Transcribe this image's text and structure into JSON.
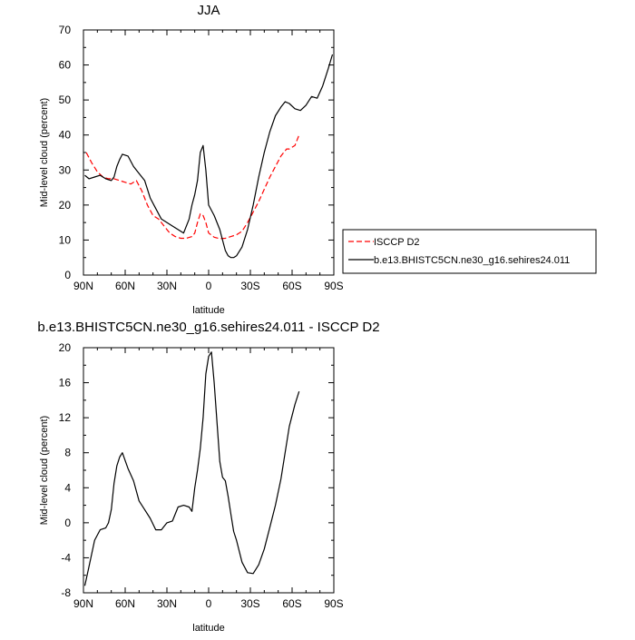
{
  "chart_data": [
    {
      "type": "line",
      "title": "JJA",
      "xlabel": "latitude",
      "ylabel": "Mid-level cloud (percent)",
      "xlim": [
        90,
        -90
      ],
      "ylim": [
        0,
        70
      ],
      "xticks": [
        90,
        60,
        30,
        0,
        -30,
        -60,
        -90
      ],
      "xtick_labels": [
        "90N",
        "60N",
        "30N",
        "0",
        "30S",
        "60S",
        "90S"
      ],
      "yticks": [
        0,
        10,
        20,
        30,
        40,
        50,
        60,
        70
      ],
      "ytick_labels": [
        "0",
        "10",
        "20",
        "30",
        "40",
        "50",
        "60",
        "70"
      ],
      "grid": false,
      "legend_position": "right",
      "series": [
        {
          "name": "ISCCP D2",
          "color": "#ff0000",
          "dash": "dashed",
          "x": [
            88,
            84,
            80,
            76,
            72,
            68,
            64,
            60,
            56,
            52,
            48,
            44,
            40,
            36,
            32,
            28,
            24,
            20,
            16,
            12,
            10,
            8,
            6,
            4,
            2,
            0,
            -4,
            -8,
            -12,
            -16,
            -20,
            -24,
            -28,
            -32,
            -36,
            -40,
            -44,
            -48,
            -52,
            -56,
            -58,
            -62,
            -65
          ],
          "y": [
            35,
            32,
            29.5,
            28,
            27.5,
            27.5,
            27,
            26.5,
            26,
            27,
            24,
            20,
            17,
            16,
            14,
            12,
            11,
            10.5,
            10.5,
            11,
            12,
            15,
            17.5,
            17,
            15,
            12,
            10.8,
            10.4,
            10.5,
            11,
            11.5,
            12.5,
            15,
            18,
            21,
            24.5,
            28,
            31,
            34,
            36,
            36,
            37,
            40
          ]
        },
        {
          "name": "b.e13.BHISTC5CN.ne30_g16.sehires24.011",
          "color": "#000000",
          "dash": "solid",
          "x": [
            89,
            86,
            82,
            78,
            74,
            70,
            68,
            66,
            64,
            62,
            58,
            54,
            50,
            46,
            42,
            38,
            34,
            30,
            26,
            22,
            18,
            14,
            12,
            10,
            8,
            6,
            4,
            2,
            0,
            -4,
            -8,
            -10,
            -12,
            -14,
            -16,
            -18,
            -20,
            -24,
            -28,
            -32,
            -36,
            -40,
            -44,
            -48,
            -52,
            -55,
            -58,
            -62,
            -66,
            -70,
            -74,
            -78,
            -82,
            -86,
            -89
          ],
          "y": [
            28.5,
            27.5,
            28,
            28.5,
            27.5,
            27,
            28,
            31,
            33,
            34.5,
            34,
            31,
            29,
            27,
            22,
            19,
            16,
            15,
            14,
            13,
            12,
            16,
            20,
            23,
            27,
            35,
            37,
            30,
            20,
            17,
            13,
            10,
            7,
            5.5,
            5,
            5,
            5.5,
            8,
            13,
            20,
            28,
            35,
            41,
            45.5,
            48,
            49.5,
            49,
            47.5,
            47,
            48.5,
            51,
            50.5,
            54,
            59,
            63
          ]
        }
      ]
    },
    {
      "type": "line",
      "title": "b.e13.BHISTC5CN.ne30_g16.sehires24.011 - ISCCP D2",
      "xlabel": "latitude",
      "ylabel": "Mid-level cloud (percent)",
      "xlim": [
        90,
        -90
      ],
      "ylim": [
        -8,
        20
      ],
      "xticks": [
        90,
        60,
        30,
        0,
        -30,
        -60,
        -90
      ],
      "xtick_labels": [
        "90N",
        "60N",
        "30N",
        "0",
        "30S",
        "60S",
        "90S"
      ],
      "yticks": [
        -8,
        -4,
        0,
        4,
        8,
        12,
        16,
        20
      ],
      "ytick_labels": [
        "-8",
        "-4",
        "0",
        "4",
        "8",
        "12",
        "16",
        "20"
      ],
      "grid": false,
      "series": [
        {
          "color": "#000000",
          "dash": "solid",
          "x": [
            89,
            86,
            82,
            78,
            74,
            72,
            70,
            68,
            66,
            64,
            62,
            58,
            54,
            50,
            46,
            42,
            38,
            34,
            30,
            26,
            22,
            18,
            14,
            12,
            10,
            8,
            6,
            4,
            2,
            0,
            -2,
            -4,
            -8,
            -10,
            -12,
            -14,
            -16,
            -18,
            -20,
            -24,
            -28,
            -32,
            -36,
            -40,
            -44,
            -48,
            -52,
            -55,
            -58,
            -62,
            -65
          ],
          "y": [
            -7.2,
            -5,
            -2,
            -0.8,
            -0.6,
            0,
            1.5,
            4.5,
            6.5,
            7.5,
            8,
            6.2,
            4.8,
            2.5,
            1.5,
            0.5,
            -0.8,
            -0.8,
            0,
            0.2,
            1.8,
            2,
            1.8,
            1.3,
            4,
            6,
            8.5,
            12,
            17,
            19,
            19.5,
            16,
            7,
            5.2,
            4.8,
            3,
            1,
            -1,
            -2,
            -4.5,
            -5.7,
            -5.8,
            -4.8,
            -3,
            -0.5,
            2,
            5,
            8,
            11,
            13.5,
            15
          ]
        }
      ]
    }
  ]
}
